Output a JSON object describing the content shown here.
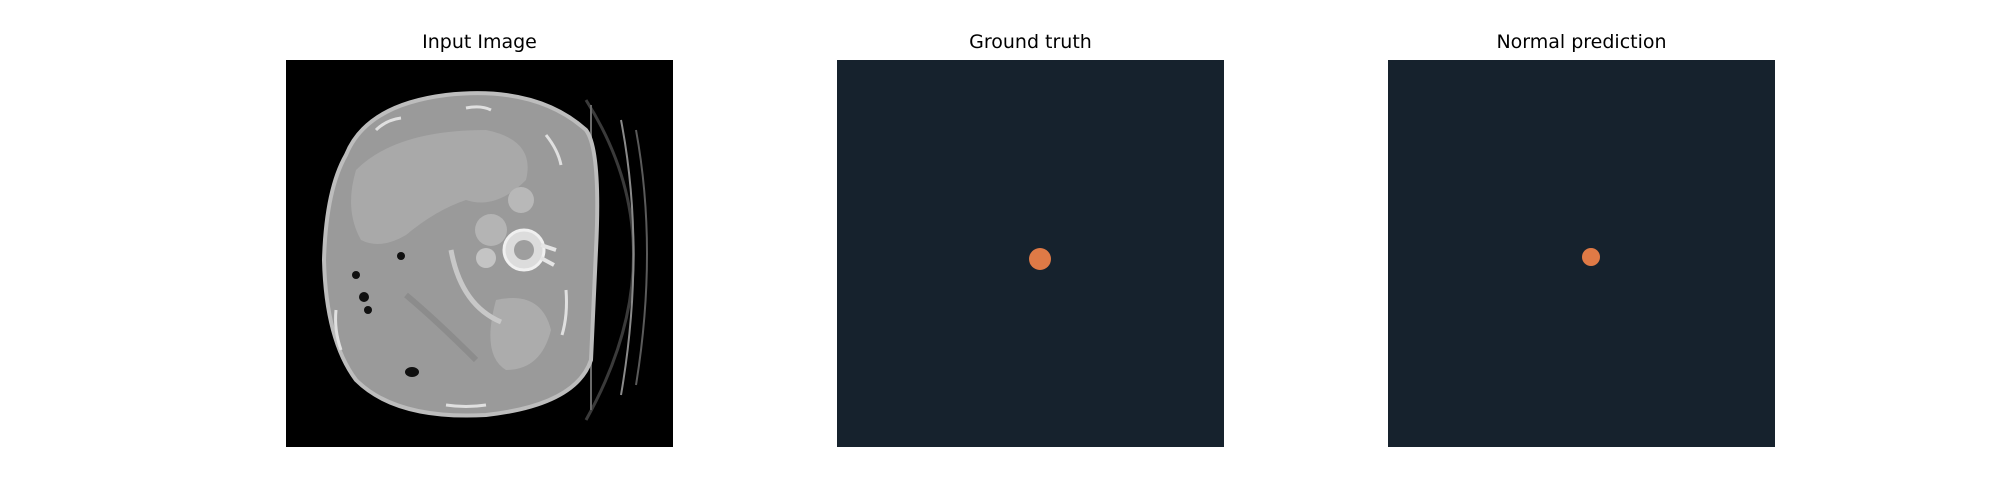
{
  "figure": {
    "panels": [
      {
        "title": "Input Image"
      },
      {
        "title": "Ground truth"
      },
      {
        "title": "Normal prediction"
      }
    ]
  },
  "colors": {
    "ct_background": "#000000",
    "mask_background": "#16222d",
    "mask_foreground": "#df7a46",
    "tissue_light": "#b0b0b0",
    "tissue_mid": "#9c9c9c",
    "tissue_dark": "#7e7e7e"
  }
}
